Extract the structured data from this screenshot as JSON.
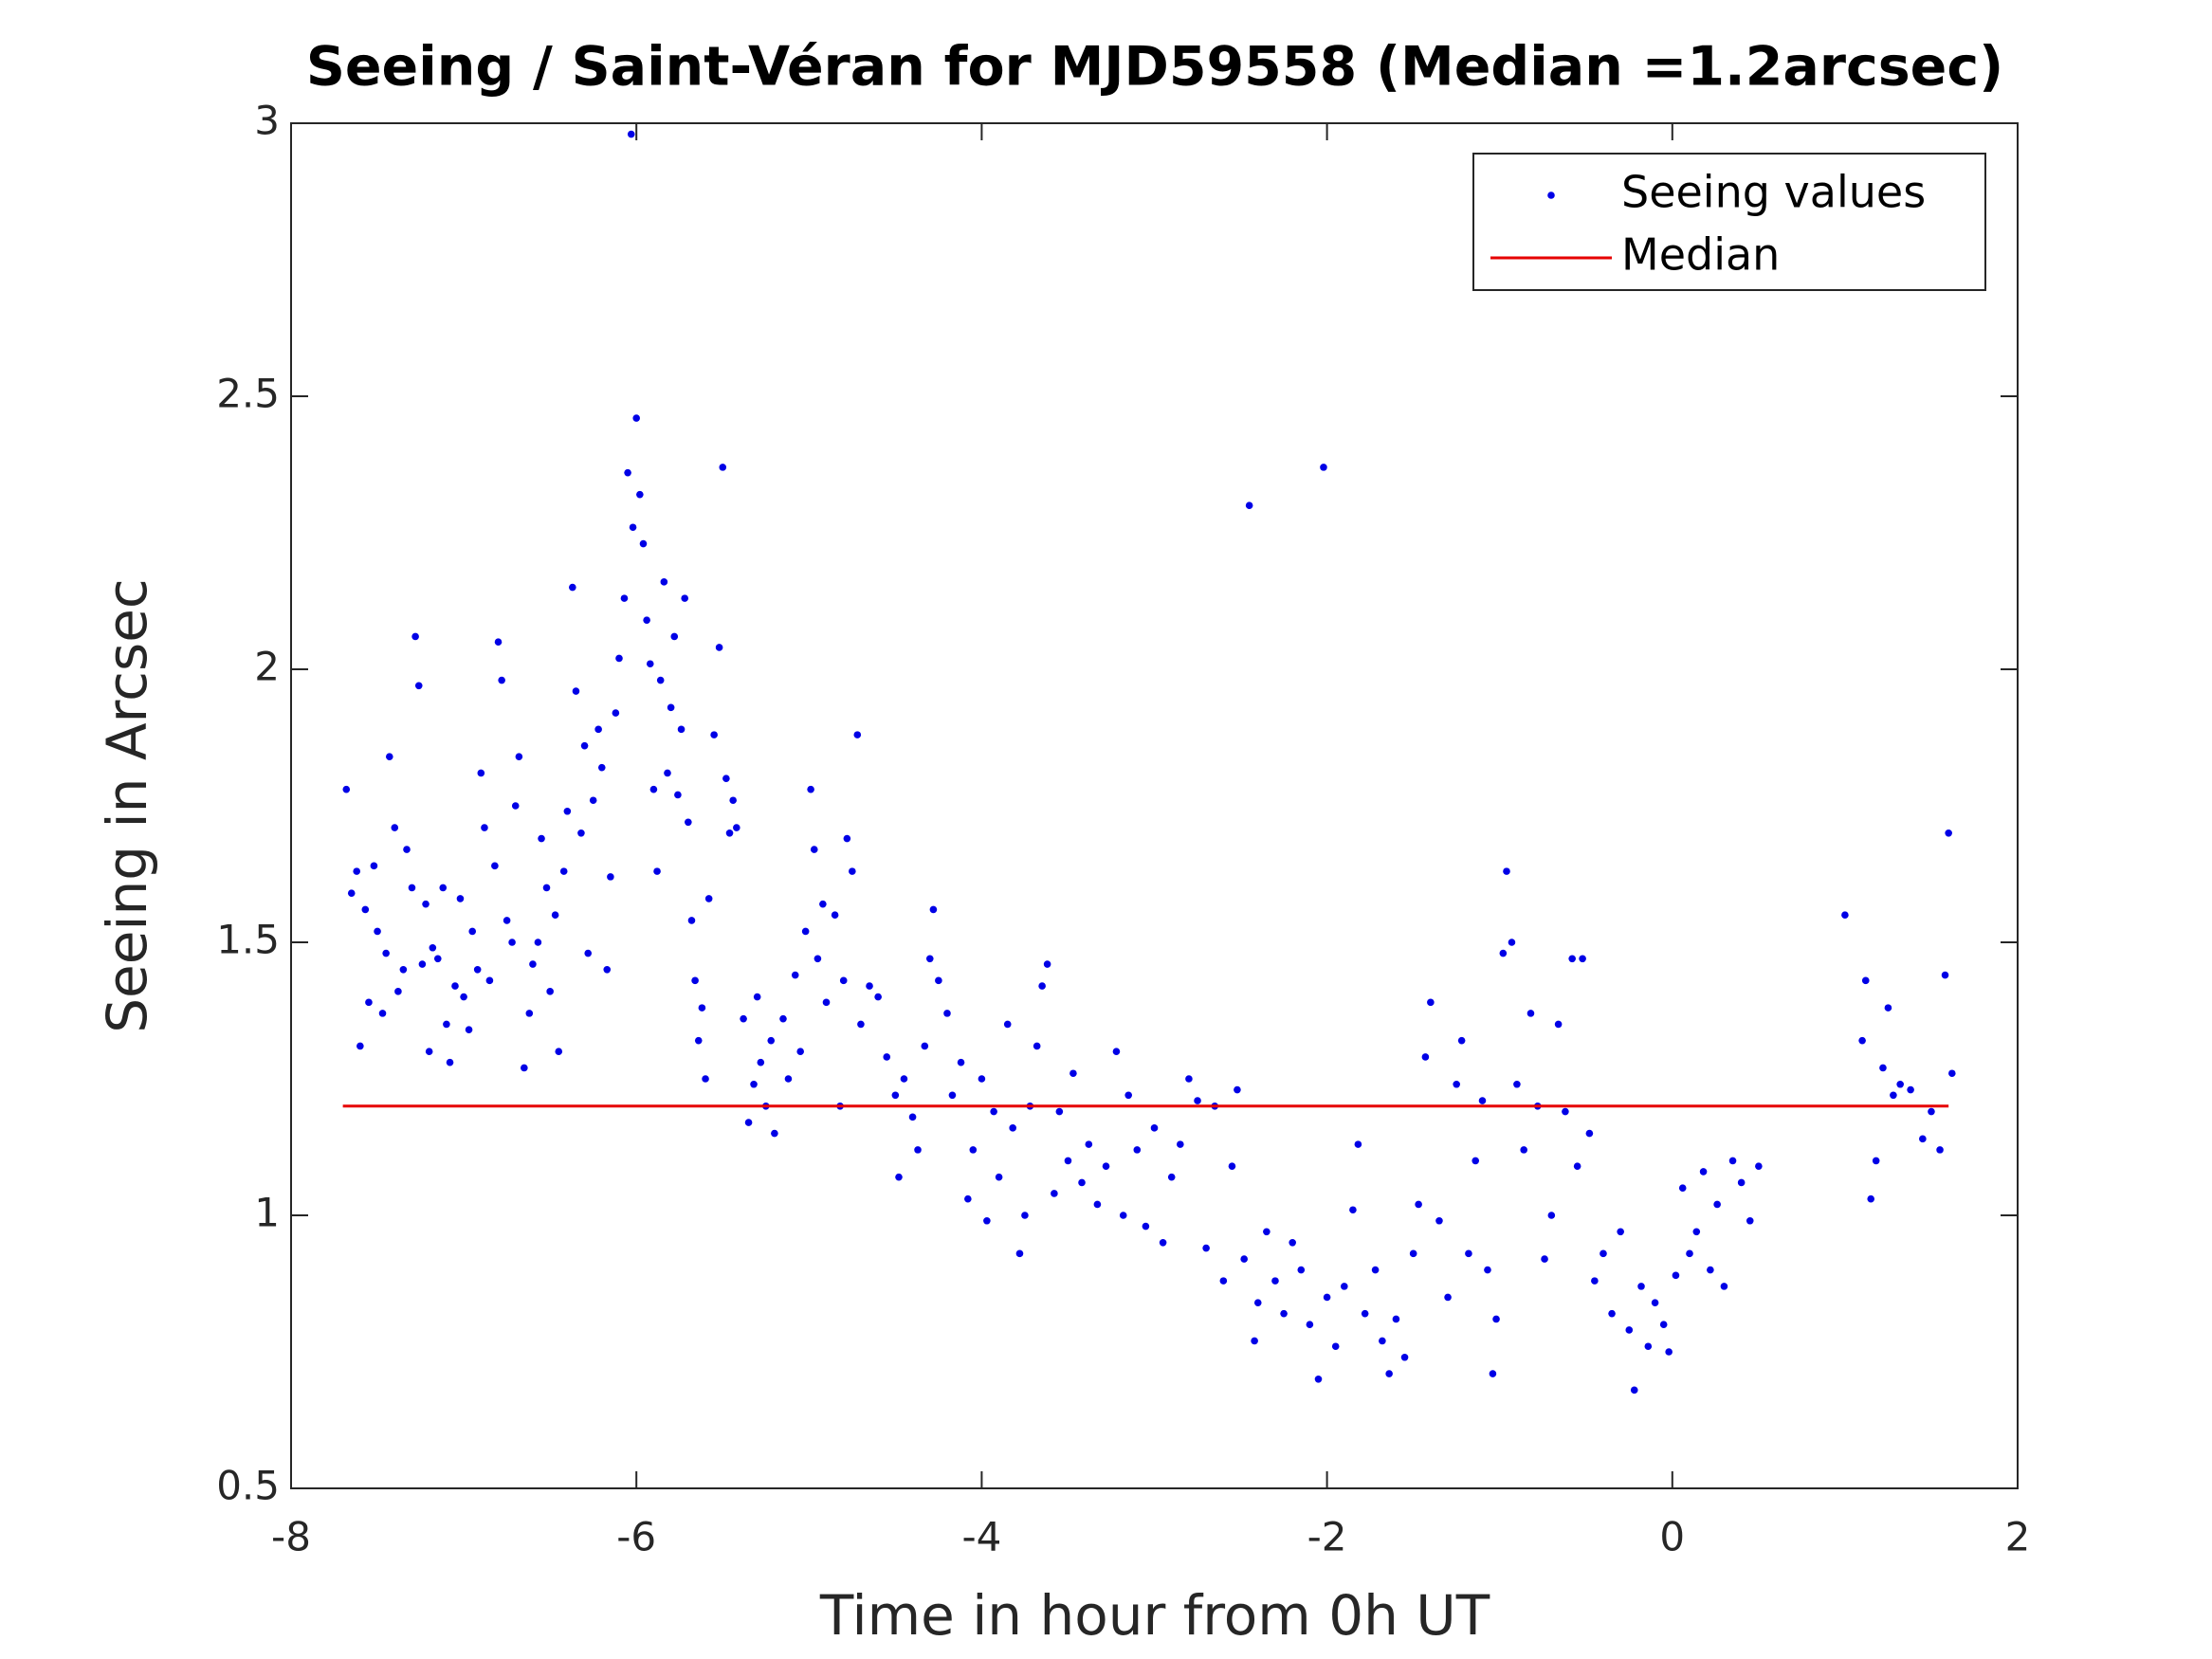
{
  "chart_data": {
    "type": "scatter",
    "title": "Seeing / Saint-Véran for MJD59558 (Median =1.2arcsec)",
    "x_label": "Time in hour from 0h UT",
    "y_label": "Seeing in Arcsec",
    "xlim": [
      -8,
      2
    ],
    "xticks": [
      -8,
      -6,
      -4,
      -2,
      0,
      2
    ],
    "ylim": [
      0.5,
      3
    ],
    "yticks": [
      0.5,
      1,
      1.5,
      2,
      2.5,
      3
    ],
    "legend": "northeast",
    "series": [
      {
        "name": "Seeing values",
        "type": "scatter",
        "color": "#0000e6",
        "x": [
          -7.68,
          -7.65,
          -7.62,
          -7.6,
          -7.57,
          -7.55,
          -7.52,
          -7.5,
          -7.47,
          -7.45,
          -7.43,
          -7.4,
          -7.38,
          -7.35,
          -7.33,
          -7.3,
          -7.28,
          -7.26,
          -7.24,
          -7.22,
          -7.2,
          -7.18,
          -7.15,
          -7.12,
          -7.1,
          -7.08,
          -7.05,
          -7.02,
          -7.0,
          -6.97,
          -6.95,
          -6.92,
          -6.9,
          -6.88,
          -6.85,
          -6.82,
          -6.8,
          -6.78,
          -6.75,
          -6.72,
          -6.7,
          -6.68,
          -6.65,
          -6.62,
          -6.6,
          -6.57,
          -6.55,
          -6.52,
          -6.5,
          -6.47,
          -6.45,
          -6.42,
          -6.4,
          -6.37,
          -6.35,
          -6.32,
          -6.3,
          -6.28,
          -6.25,
          -6.22,
          -6.2,
          -6.17,
          -6.15,
          -6.12,
          -6.1,
          -6.07,
          -6.05,
          -6.03,
          -6.02,
          -6.0,
          -5.98,
          -5.96,
          -5.94,
          -5.92,
          -5.9,
          -5.88,
          -5.86,
          -5.84,
          -5.82,
          -5.8,
          -5.78,
          -5.76,
          -5.74,
          -5.72,
          -5.7,
          -5.68,
          -5.66,
          -5.64,
          -5.62,
          -5.6,
          -5.58,
          -5.55,
          -5.52,
          -5.5,
          -5.48,
          -5.46,
          -5.44,
          -5.42,
          -5.38,
          -5.35,
          -5.32,
          -5.3,
          -5.28,
          -5.25,
          -5.22,
          -5.2,
          -5.15,
          -5.12,
          -5.08,
          -5.05,
          -5.02,
          -4.99,
          -4.97,
          -4.95,
          -4.92,
          -4.9,
          -4.85,
          -4.82,
          -4.8,
          -4.78,
          -4.75,
          -4.72,
          -4.7,
          -4.65,
          -4.6,
          -4.55,
          -4.5,
          -4.48,
          -4.45,
          -4.4,
          -4.37,
          -4.33,
          -4.3,
          -4.28,
          -4.25,
          -4.2,
          -4.17,
          -4.12,
          -4.08,
          -4.05,
          -4.0,
          -3.97,
          -3.93,
          -3.9,
          -3.85,
          -3.82,
          -3.78,
          -3.75,
          -3.72,
          -3.68,
          -3.65,
          -3.62,
          -3.58,
          -3.55,
          -3.5,
          -3.47,
          -3.42,
          -3.38,
          -3.33,
          -3.28,
          -3.22,
          -3.18,
          -3.15,
          -3.1,
          -3.05,
          -3.0,
          -2.95,
          -2.9,
          -2.85,
          -2.8,
          -2.75,
          -2.7,
          -2.65,
          -2.6,
          -2.55,
          -2.52,
          -2.48,
          -2.45,
          -2.42,
          -2.4,
          -2.35,
          -2.3,
          -2.25,
          -2.2,
          -2.15,
          -2.1,
          -2.05,
          -2.02,
          -2.0,
          -1.95,
          -1.9,
          -1.85,
          -1.82,
          -1.78,
          -1.72,
          -1.68,
          -1.64,
          -1.6,
          -1.55,
          -1.5,
          -1.47,
          -1.43,
          -1.4,
          -1.35,
          -1.3,
          -1.25,
          -1.22,
          -1.18,
          -1.14,
          -1.1,
          -1.07,
          -1.04,
          -1.02,
          -0.98,
          -0.96,
          -0.93,
          -0.9,
          -0.86,
          -0.82,
          -0.78,
          -0.74,
          -0.7,
          -0.66,
          -0.62,
          -0.58,
          -0.55,
          -0.52,
          -0.48,
          -0.45,
          -0.4,
          -0.35,
          -0.3,
          -0.25,
          -0.22,
          -0.18,
          -0.14,
          -0.1,
          -0.05,
          -0.02,
          0.02,
          0.06,
          0.1,
          0.14,
          0.18,
          0.22,
          0.26,
          0.3,
          0.35,
          0.4,
          0.45,
          0.5,
          1.0,
          1.1,
          1.12,
          1.15,
          1.18,
          1.22,
          1.25,
          1.28,
          1.32,
          1.38,
          1.45,
          1.5,
          1.55,
          1.58,
          1.6,
          1.62
        ],
        "values": [
          1.78,
          1.59,
          1.63,
          1.31,
          1.56,
          1.39,
          1.64,
          1.52,
          1.37,
          1.48,
          1.84,
          1.71,
          1.41,
          1.45,
          1.67,
          1.6,
          2.06,
          1.97,
          1.46,
          1.57,
          1.3,
          1.49,
          1.47,
          1.6,
          1.35,
          1.28,
          1.42,
          1.58,
          1.4,
          1.34,
          1.52,
          1.45,
          1.81,
          1.71,
          1.43,
          1.64,
          2.05,
          1.98,
          1.54,
          1.5,
          1.75,
          1.84,
          1.27,
          1.37,
          1.46,
          1.5,
          1.69,
          1.6,
          1.41,
          1.55,
          1.3,
          1.63,
          1.74,
          2.15,
          1.96,
          1.7,
          1.86,
          1.48,
          1.76,
          1.89,
          1.82,
          1.45,
          1.62,
          1.92,
          2.02,
          2.13,
          2.36,
          2.98,
          2.26,
          2.46,
          2.32,
          2.23,
          2.09,
          2.01,
          1.78,
          1.63,
          1.98,
          2.16,
          1.81,
          1.93,
          2.06,
          1.77,
          1.89,
          2.13,
          1.72,
          1.54,
          1.43,
          1.32,
          1.38,
          1.25,
          1.58,
          1.88,
          2.04,
          2.37,
          1.8,
          1.7,
          1.76,
          1.71,
          1.36,
          1.17,
          1.24,
          1.4,
          1.28,
          1.2,
          1.32,
          1.15,
          1.36,
          1.25,
          1.44,
          1.3,
          1.52,
          1.78,
          1.67,
          1.47,
          1.57,
          1.39,
          1.55,
          1.2,
          1.43,
          1.69,
          1.63,
          1.88,
          1.35,
          1.42,
          1.4,
          1.29,
          1.22,
          1.07,
          1.25,
          1.18,
          1.12,
          1.31,
          1.47,
          1.56,
          1.43,
          1.37,
          1.22,
          1.28,
          1.03,
          1.12,
          1.25,
          0.99,
          1.19,
          1.07,
          1.35,
          1.16,
          0.93,
          1.0,
          1.2,
          1.31,
          1.42,
          1.46,
          1.04,
          1.19,
          1.1,
          1.26,
          1.06,
          1.13,
          1.02,
          1.09,
          1.3,
          1.0,
          1.22,
          1.12,
          0.98,
          1.16,
          0.95,
          1.07,
          1.13,
          1.25,
          1.21,
          0.94,
          1.2,
          0.88,
          1.09,
          1.23,
          0.92,
          2.3,
          0.77,
          0.84,
          0.97,
          0.88,
          0.82,
          0.95,
          0.9,
          0.8,
          0.7,
          2.37,
          0.85,
          0.76,
          0.87,
          1.01,
          1.13,
          0.82,
          0.9,
          0.77,
          0.71,
          0.81,
          0.74,
          0.93,
          1.02,
          1.29,
          1.39,
          0.99,
          0.85,
          1.24,
          1.32,
          0.93,
          1.1,
          1.21,
          0.9,
          0.71,
          0.81,
          1.48,
          1.63,
          1.5,
          1.24,
          1.12,
          1.37,
          1.2,
          0.92,
          1.0,
          1.35,
          1.19,
          1.47,
          1.09,
          1.47,
          1.15,
          0.88,
          0.93,
          0.82,
          0.97,
          0.79,
          0.68,
          0.87,
          0.76,
          0.84,
          0.8,
          0.75,
          0.89,
          1.05,
          0.93,
          0.97,
          1.08,
          0.9,
          1.02,
          0.87,
          1.1,
          1.06,
          0.99,
          1.09,
          1.55,
          1.32,
          1.43,
          1.03,
          1.1,
          1.27,
          1.38,
          1.22,
          1.24,
          1.23,
          1.14,
          1.19,
          1.12,
          1.44,
          1.7,
          1.26
        ]
      },
      {
        "name": "Median",
        "type": "line",
        "color": "#e60000",
        "x": [
          -7.7,
          1.6
        ],
        "values": [
          1.2,
          1.2
        ]
      }
    ]
  }
}
